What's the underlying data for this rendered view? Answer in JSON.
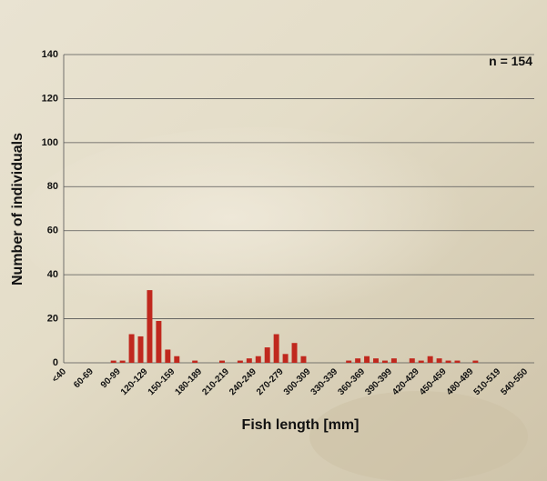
{
  "chart_data": {
    "type": "bar",
    "annotation": "n = 154",
    "x_label": "Fish length [mm]",
    "y_label": "Number of individuals",
    "categories": [
      "<40",
      null,
      null,
      "60-69",
      null,
      null,
      "90-99",
      null,
      null,
      "120-129",
      null,
      null,
      "150-159",
      null,
      null,
      "180-189",
      null,
      null,
      "210-219",
      null,
      null,
      "240-249",
      null,
      null,
      "270-279",
      null,
      null,
      "300-309",
      null,
      null,
      "330-339",
      null,
      null,
      "360-369",
      null,
      null,
      "390-399",
      null,
      null,
      "420-429",
      null,
      null,
      "450-459",
      null,
      null,
      "480-489",
      null,
      null,
      "510-519",
      null,
      null,
      "540-550"
    ],
    "values": [
      0,
      0,
      0,
      0,
      0,
      1,
      1,
      13,
      12,
      33,
      19,
      6,
      3,
      0,
      1,
      0,
      0,
      1,
      0,
      1,
      2,
      3,
      7,
      13,
      4,
      9,
      3,
      0,
      0,
      0,
      0,
      1,
      2,
      3,
      2,
      1,
      2,
      0,
      2,
      1,
      3,
      2,
      1,
      1,
      0,
      1,
      0,
      0,
      0,
      0,
      0,
      0
    ],
    "color": "#c0281e",
    "ylim": [
      0,
      140
    ],
    "yticks": [
      0,
      20,
      40,
      60,
      80,
      100,
      120,
      140
    ],
    "grid": true
  }
}
